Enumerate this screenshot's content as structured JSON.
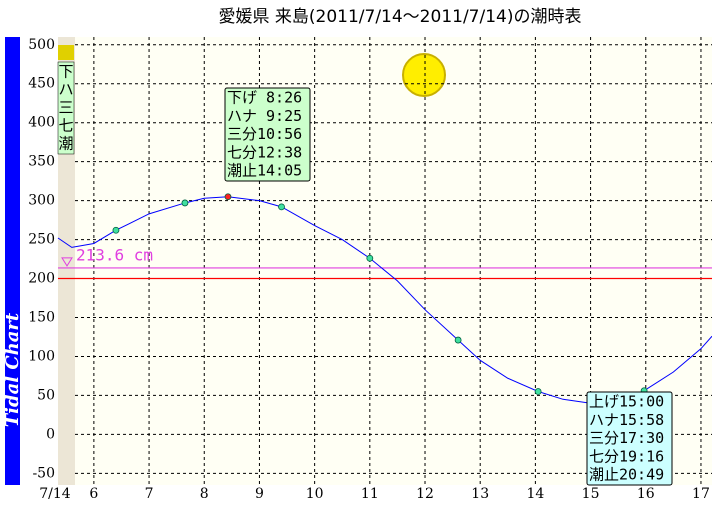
{
  "chart_data": {
    "type": "line",
    "title": "愛媛県  来島(2011/7/14～2011/7/14)の潮時表",
    "side_title": "Tidal Chart",
    "date_label": "7/14",
    "side_labels": [
      "下",
      "ハ",
      "三",
      "七",
      "潮"
    ],
    "xlim": [
      5.35,
      17.2
    ],
    "xticks": [
      6,
      7,
      8,
      9,
      10,
      11,
      12,
      13,
      14,
      15,
      16,
      17
    ],
    "ylim": [
      -65,
      510
    ],
    "yticks": [
      -50,
      0,
      50,
      100,
      150,
      200,
      250,
      300,
      350,
      400,
      450,
      500
    ],
    "grid": true,
    "series": [
      {
        "color": "#0000ff",
        "x": [
          5.35,
          5.6,
          6,
          6.4,
          7,
          7.65,
          8,
          8.43,
          9,
          9.4,
          10,
          10.5,
          11,
          11.5,
          12,
          12.6,
          13,
          13.5,
          14.05,
          14.5,
          15,
          15.5,
          15.97,
          16.5,
          17,
          17.2
        ],
        "values": [
          252,
          240,
          245,
          262,
          283,
          297,
          303,
          305,
          300,
          292,
          268,
          250,
          226,
          197,
          160,
          121,
          95,
          72,
          55,
          45,
          40,
          43,
          56,
          80,
          110,
          126
        ]
      }
    ],
    "points": {
      "x": [
        6.4,
        7.65,
        8.43,
        9.4,
        11,
        12.6,
        14.05,
        15.97
      ],
      "values": [
        262,
        297,
        305,
        292,
        226,
        121,
        55,
        56
      ],
      "colors": [
        "#40e0a0",
        "#40e0a0",
        "#ff2020",
        "#40e0a0",
        "#40e0a0",
        "#40e0a0",
        "#40e0a0",
        "#40e0a0"
      ]
    },
    "reference_lines": [
      {
        "value": 213.6,
        "label": "213.6 cm",
        "color": "#e040e0"
      },
      {
        "value": 200,
        "color": "#ff0000"
      }
    ],
    "annotations": [
      {
        "lines": [
          "下げ 8:26",
          "ハナ 9:25",
          "三分10:56",
          "七分12:38",
          "潮止14:05"
        ],
        "color": "#ccffcc"
      },
      {
        "lines": [
          "上げ15:00",
          "ハナ15:58",
          "三分17:30",
          "七分19:16",
          "潮止20:49"
        ],
        "color": "#ccffff"
      }
    ]
  }
}
